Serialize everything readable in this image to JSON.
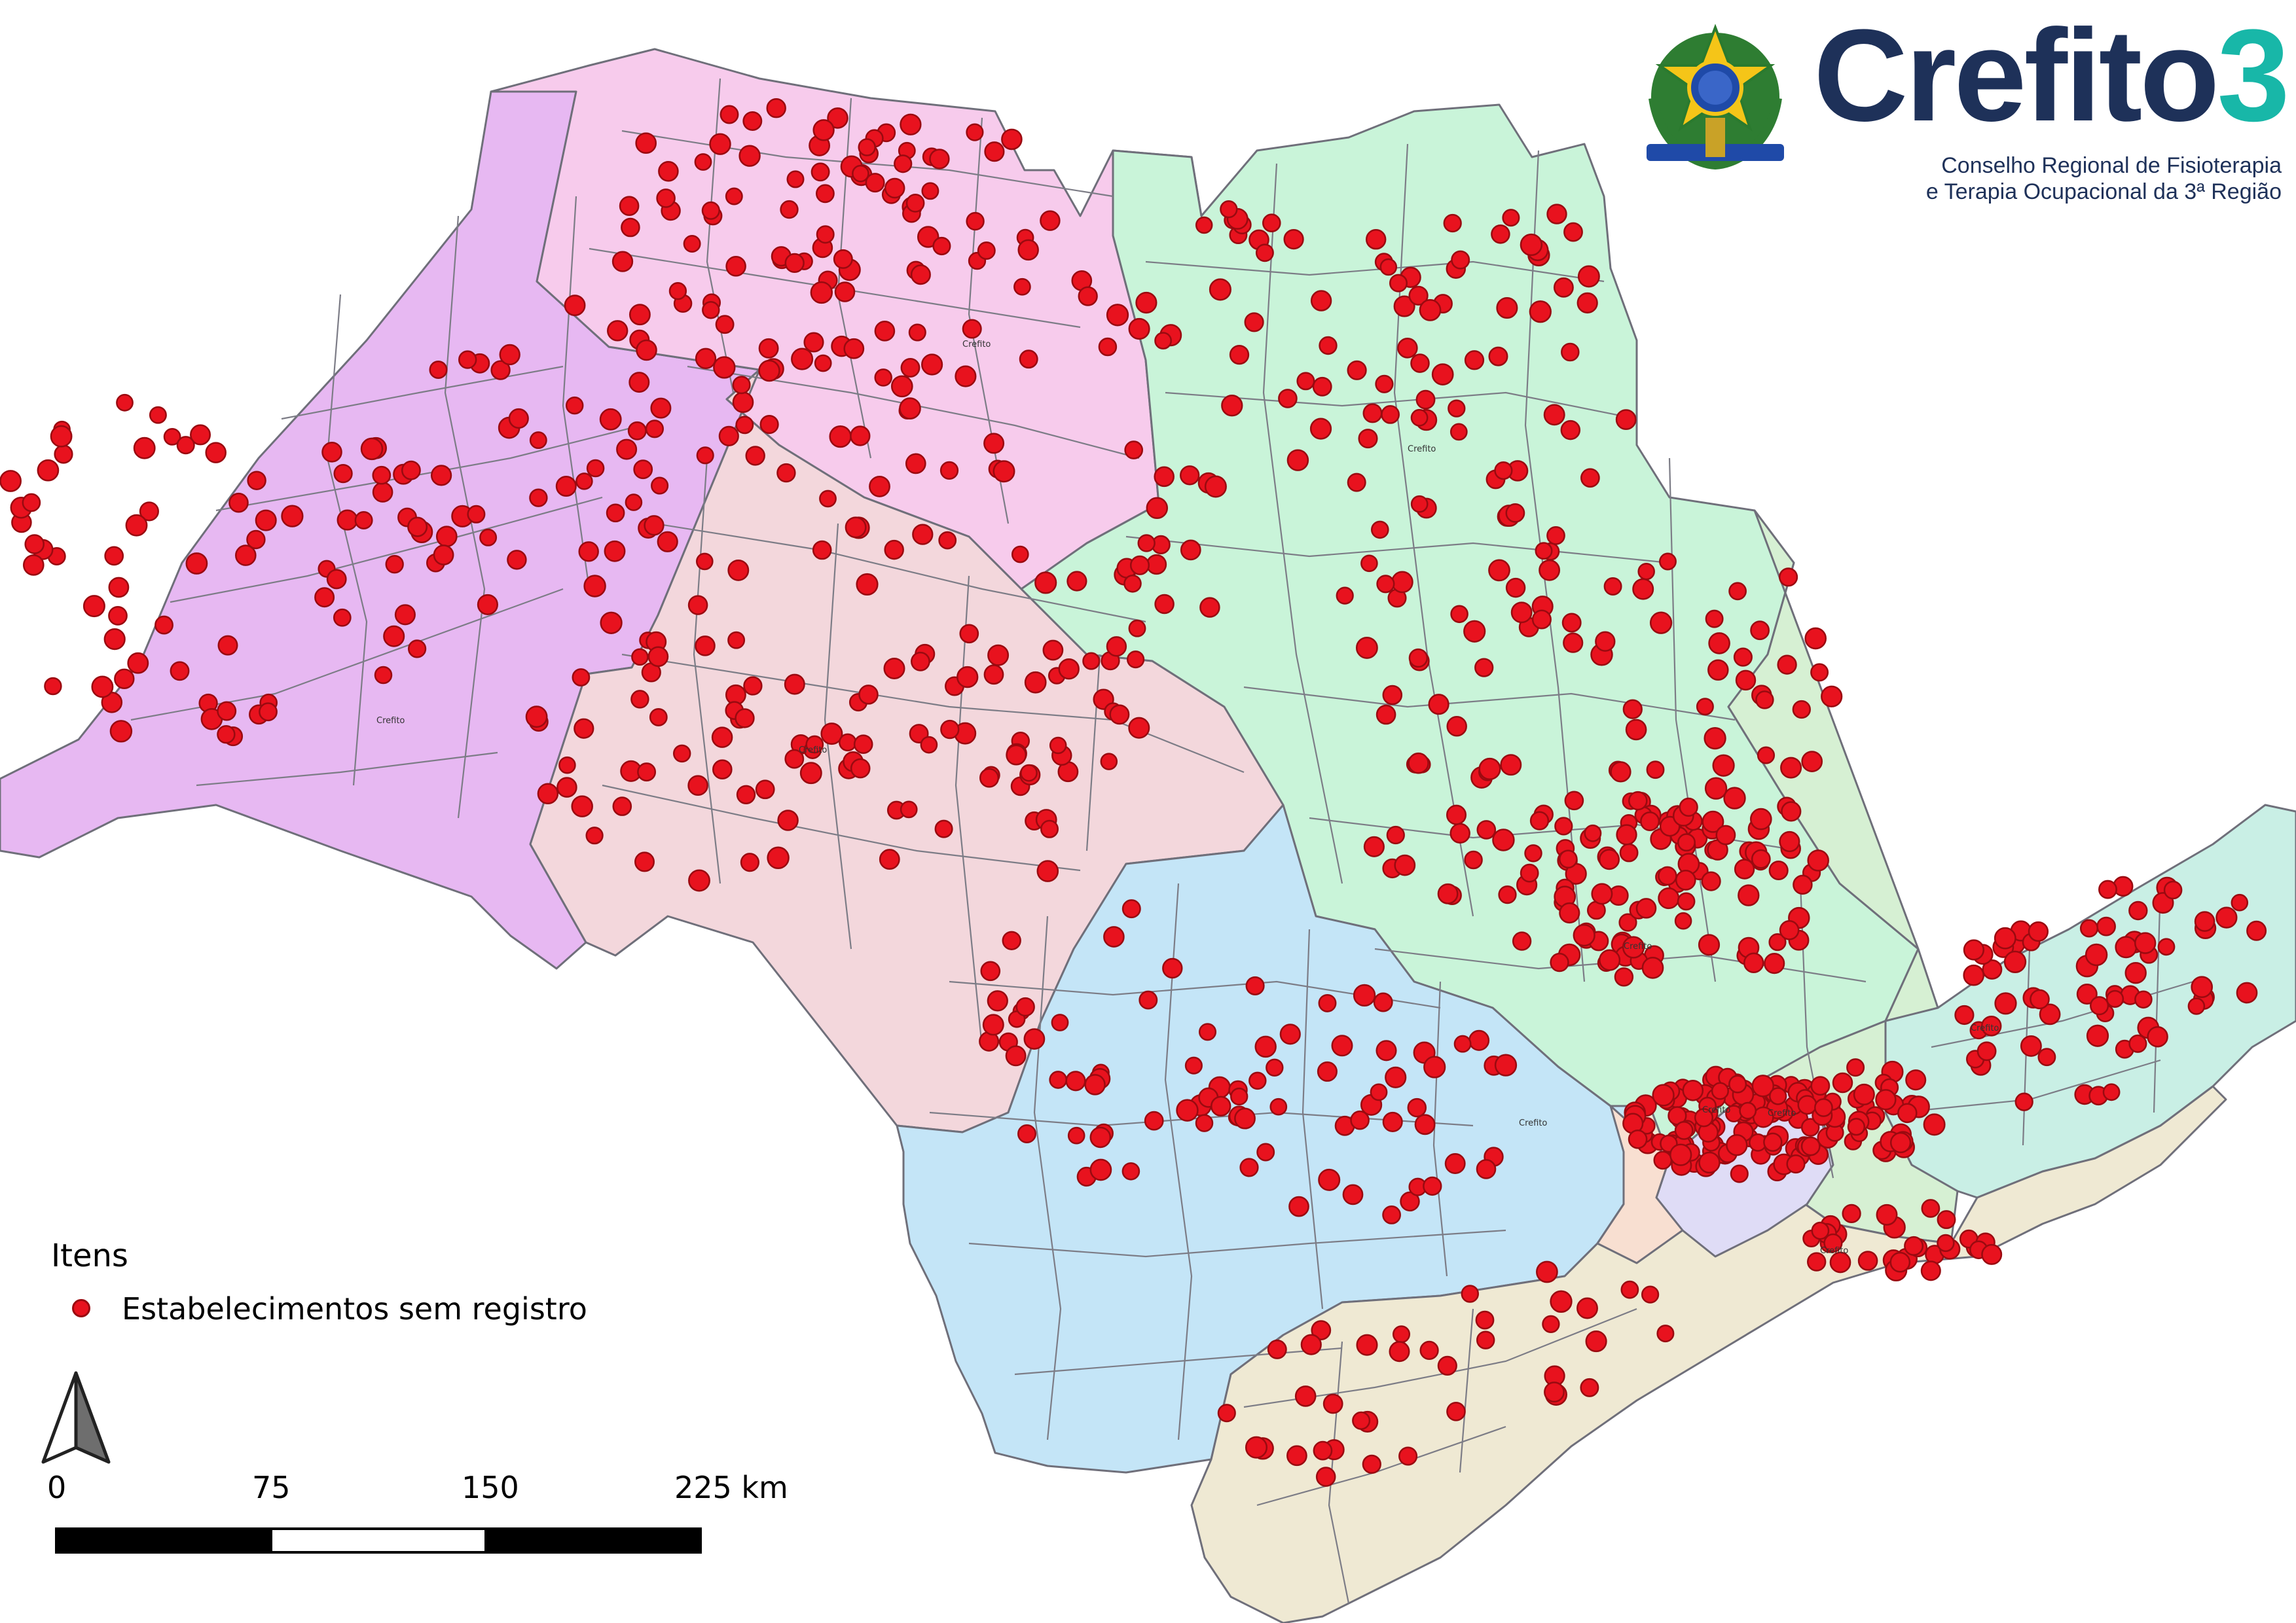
{
  "logo": {
    "name": "Crefito",
    "number": "3",
    "subtitle_line1": "Conselho Regional de Fisioterapia",
    "subtitle_line2": "e Terapia Ocupacional da 3ª Região",
    "emblem": "brazil-coat-of-arms-icon"
  },
  "legend": {
    "title": "Itens",
    "items": [
      {
        "label": "Estabelecimentos sem registro",
        "symbol": "red-circle",
        "color": "#e8121e"
      }
    ]
  },
  "scalebar": {
    "labels": [
      "0",
      "75",
      "150",
      "225 km"
    ]
  },
  "north_arrow": {
    "icon": "north-arrow-icon"
  },
  "map": {
    "office_label": "Crefito",
    "point_color": "#e8121e",
    "region_colors": [
      "#e7b8f2",
      "#f7cbec",
      "#f3d7dc",
      "#c9f4d9",
      "#c4e5f7",
      "#efe9d3",
      "#c9efe5",
      "#dfdcf6",
      "#f8dfd1"
    ]
  }
}
